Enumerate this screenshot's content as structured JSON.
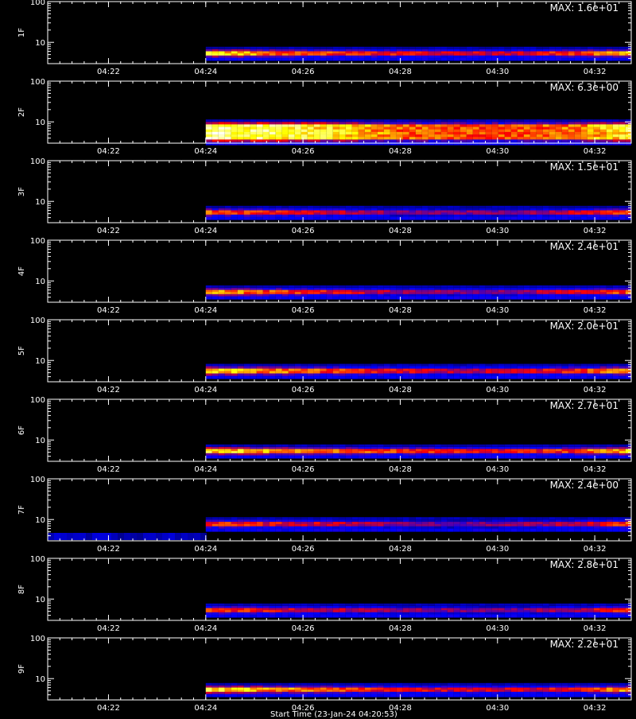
{
  "chart_data": {
    "type": "heatmap",
    "colormap": [
      "#000000",
      "#0000ff",
      "#ff0000",
      "#ffff00",
      "#ffffff"
    ],
    "x": {
      "ticks": [
        "04:22",
        "04:24",
        "04:26",
        "04:28",
        "04:30",
        "04:32"
      ],
      "range_minutes": [
        "04:20:45",
        "04:32:45"
      ]
    },
    "y": {
      "scale": "log",
      "ticks": [
        "10",
        "100"
      ],
      "range": [
        3,
        100
      ]
    },
    "footer": "Start Time (23-Jan-24 04:20:53)",
    "panels": [
      {
        "label": "1F",
        "max": "MAX: 1.6e+01",
        "start": "04:24",
        "band": [
          4.2,
          6.8
        ],
        "level": 0.78,
        "profile": [
          0.95,
          0.8,
          0.7,
          0.65,
          0.6,
          0.6,
          0.7,
          0.9
        ]
      },
      {
        "label": "2F",
        "max": "MAX: 6.3e+00",
        "start": "04:24",
        "band": [
          3.2,
          10.0
        ],
        "level": 0.9,
        "profile": [
          1.0,
          0.95,
          0.85,
          0.7,
          0.65,
          0.65,
          0.7,
          0.9
        ]
      },
      {
        "label": "3F",
        "max": "MAX: 1.5e+01",
        "start": "04:24",
        "band": [
          4.2,
          6.8
        ],
        "level": 0.7,
        "profile": [
          0.85,
          0.75,
          0.65,
          0.55,
          0.55,
          0.55,
          0.65,
          0.85
        ]
      },
      {
        "label": "4F",
        "max": "MAX: 2.4e+01",
        "start": "04:24",
        "band": [
          4.2,
          6.8
        ],
        "level": 0.72,
        "profile": [
          0.95,
          0.8,
          0.7,
          0.6,
          0.55,
          0.55,
          0.65,
          0.85
        ]
      },
      {
        "label": "5F",
        "max": "MAX: 2.0e+01",
        "start": "04:24",
        "band": [
          4.2,
          7.2
        ],
        "level": 0.75,
        "profile": [
          0.95,
          0.85,
          0.75,
          0.65,
          0.6,
          0.6,
          0.7,
          0.9
        ]
      },
      {
        "label": "6F",
        "max": "MAX: 2.7e+01",
        "start": "04:24",
        "band": [
          4.2,
          6.8
        ],
        "level": 0.8,
        "profile": [
          0.95,
          0.85,
          0.75,
          0.7,
          0.65,
          0.62,
          0.7,
          0.92
        ]
      },
      {
        "label": "7F",
        "max": "MAX: 2.4e+00",
        "start": "04:24",
        "band": [
          6.0,
          10.0
        ],
        "level": 0.65,
        "profile": [
          0.85,
          0.75,
          0.7,
          0.6,
          0.55,
          0.6,
          0.65,
          0.9
        ]
      },
      {
        "label": "8F",
        "max": "MAX: 2.8e+01",
        "start": "04:24",
        "band": [
          4.2,
          6.8
        ],
        "level": 0.68,
        "profile": [
          0.8,
          0.75,
          0.65,
          0.6,
          0.55,
          0.55,
          0.62,
          0.85
        ]
      },
      {
        "label": "9F",
        "max": "MAX: 2.2e+01",
        "start": "04:24",
        "band": [
          4.2,
          6.8
        ],
        "level": 0.78,
        "profile": [
          1.0,
          0.85,
          0.75,
          0.65,
          0.6,
          0.6,
          0.65,
          0.85
        ]
      }
    ]
  }
}
